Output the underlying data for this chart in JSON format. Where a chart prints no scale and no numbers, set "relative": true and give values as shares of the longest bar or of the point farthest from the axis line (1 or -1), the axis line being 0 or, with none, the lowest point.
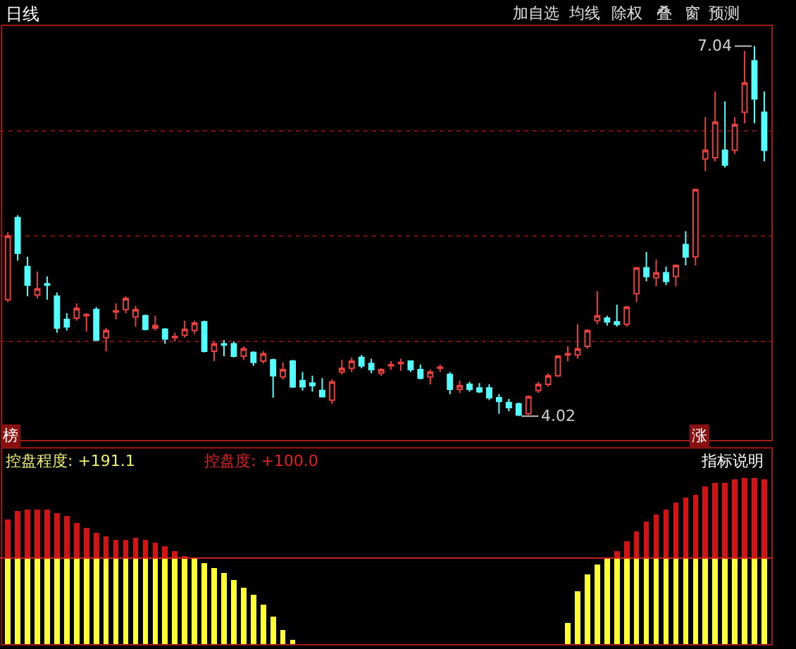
{
  "chart_data": [
    {
      "type": "candlestick",
      "title": "日线",
      "categories": [
        null,
        null,
        null,
        null,
        null,
        null,
        null,
        null,
        null,
        null,
        null,
        null,
        null,
        null,
        null,
        null,
        null,
        null,
        null,
        null,
        null,
        null,
        null,
        null,
        null,
        null,
        null,
        null,
        null,
        null,
        null,
        null,
        null,
        null,
        null,
        null,
        null,
        null,
        null,
        null,
        null,
        null,
        null,
        null,
        null,
        null,
        null,
        null,
        null,
        null,
        null,
        null,
        null,
        null,
        null,
        null,
        null,
        null,
        null,
        null,
        null,
        null,
        null,
        null,
        null,
        null,
        null,
        null,
        null,
        null,
        null,
        null,
        null,
        null,
        null,
        null,
        null,
        null
      ],
      "ohlc": [
        [
          4.97,
          5.52,
          4.95,
          5.49
        ],
        [
          5.64,
          5.66,
          5.29,
          5.35
        ],
        [
          5.24,
          5.32,
          5.0,
          5.09
        ],
        [
          5.01,
          5.2,
          4.98,
          5.06
        ],
        [
          5.1,
          5.16,
          4.97,
          5.09
        ],
        [
          5.0,
          5.03,
          4.7,
          4.74
        ],
        [
          4.81,
          4.86,
          4.72,
          4.75
        ],
        [
          4.82,
          4.94,
          4.8,
          4.9
        ],
        [
          4.84,
          4.86,
          4.71,
          4.85
        ],
        [
          4.89,
          4.91,
          4.64,
          4.64
        ],
        [
          4.66,
          4.74,
          4.55,
          4.72
        ],
        [
          4.87,
          4.94,
          4.81,
          4.88
        ],
        [
          4.89,
          5.0,
          4.86,
          4.98
        ],
        [
          4.83,
          4.92,
          4.75,
          4.89
        ],
        [
          4.84,
          4.85,
          4.72,
          4.73
        ],
        [
          4.74,
          4.84,
          4.72,
          4.76
        ],
        [
          4.73,
          4.74,
          4.61,
          4.65
        ],
        [
          4.66,
          4.7,
          4.63,
          4.67
        ],
        [
          4.68,
          4.8,
          4.66,
          4.73
        ],
        [
          4.72,
          4.8,
          4.69,
          4.78
        ],
        [
          4.79,
          4.8,
          4.54,
          4.55
        ],
        [
          4.55,
          4.63,
          4.47,
          4.61
        ],
        [
          4.61,
          4.64,
          4.51,
          4.6
        ],
        [
          4.61,
          4.63,
          4.5,
          4.51
        ],
        [
          4.51,
          4.59,
          4.48,
          4.57
        ],
        [
          4.54,
          4.55,
          4.43,
          4.46
        ],
        [
          4.47,
          4.55,
          4.45,
          4.53
        ],
        [
          4.48,
          4.49,
          4.17,
          4.35
        ],
        [
          4.34,
          4.46,
          4.32,
          4.4
        ],
        [
          4.47,
          4.48,
          4.25,
          4.26
        ],
        [
          4.31,
          4.38,
          4.23,
          4.26
        ],
        [
          4.29,
          4.35,
          4.22,
          4.27
        ],
        [
          4.23,
          4.33,
          4.18,
          4.18
        ],
        [
          4.15,
          4.32,
          4.12,
          4.3
        ],
        [
          4.38,
          4.48,
          4.36,
          4.41
        ],
        [
          4.41,
          4.5,
          4.38,
          4.47
        ],
        [
          4.5,
          4.52,
          4.41,
          4.43
        ],
        [
          4.45,
          4.49,
          4.37,
          4.4
        ],
        [
          4.37,
          4.41,
          4.35,
          4.4
        ],
        [
          4.43,
          4.47,
          4.4,
          4.44
        ],
        [
          4.45,
          4.49,
          4.39,
          4.46
        ],
        [
          4.47,
          4.47,
          4.38,
          4.4
        ],
        [
          4.4,
          4.44,
          4.32,
          4.33
        ],
        [
          4.34,
          4.4,
          4.28,
          4.38
        ],
        [
          4.41,
          4.44,
          4.38,
          4.42
        ],
        [
          4.36,
          4.38,
          4.2,
          4.24
        ],
        [
          4.24,
          4.31,
          4.21,
          4.27
        ],
        [
          4.28,
          4.3,
          4.22,
          4.24
        ],
        [
          4.25,
          4.29,
          4.21,
          4.22
        ],
        [
          4.25,
          4.28,
          4.15,
          4.17
        ],
        [
          4.17,
          4.2,
          4.04,
          4.14
        ],
        [
          4.13,
          4.16,
          4.06,
          4.09
        ],
        [
          4.12,
          4.13,
          4.02,
          4.03
        ],
        [
          4.04,
          4.19,
          4.03,
          4.18
        ],
        [
          4.23,
          4.3,
          4.21,
          4.28
        ],
        [
          4.28,
          4.37,
          4.26,
          4.35
        ],
        [
          4.35,
          4.52,
          4.34,
          4.51
        ],
        [
          4.52,
          4.59,
          4.47,
          4.53
        ],
        [
          4.52,
          4.77,
          4.49,
          4.57
        ],
        [
          4.59,
          4.73,
          4.57,
          4.72
        ],
        [
          4.8,
          5.04,
          4.77,
          4.84
        ],
        [
          4.82,
          4.84,
          4.76,
          4.79
        ],
        [
          4.79,
          4.93,
          4.75,
          4.77
        ],
        [
          4.77,
          4.92,
          4.75,
          4.91
        ],
        [
          5.02,
          5.23,
          4.95,
          5.23
        ],
        [
          5.23,
          5.36,
          5.12,
          5.16
        ],
        [
          5.15,
          5.3,
          5.08,
          5.19
        ],
        [
          5.19,
          5.24,
          5.09,
          5.12
        ],
        [
          5.16,
          5.26,
          5.08,
          5.25
        ],
        [
          5.42,
          5.53,
          5.25,
          5.32
        ],
        [
          5.32,
          5.87,
          5.25,
          5.87
        ],
        [
          6.12,
          6.46,
          6.02,
          6.19
        ],
        [
          6.13,
          6.67,
          6.1,
          6.42
        ],
        [
          6.19,
          6.59,
          6.05,
          6.07
        ],
        [
          6.19,
          6.46,
          6.16,
          6.4
        ],
        [
          6.5,
          7.0,
          6.41,
          6.74
        ],
        [
          6.92,
          7.04,
          6.41,
          6.61
        ],
        [
          6.5,
          6.67,
          6.1,
          6.19
        ]
      ],
      "ylim": [
        3.82,
        7.21
      ],
      "yticks": [
        {
          "value": 4.63,
          "label": null
        },
        {
          "value": 5.49,
          "label": null
        },
        {
          "value": 6.35,
          "label": null
        }
      ],
      "grid": "y",
      "tick_labels": false,
      "annotations": [
        "加自选",
        "均线",
        "除权",
        "叠",
        "窗",
        "预测",
        "榜",
        "涨",
        "7.04",
        "4.02"
      ]
    },
    {
      "type": "bar",
      "stacked": true,
      "relative": true,
      "tick_labels": false,
      "categories": [
        null,
        null,
        null,
        null,
        null,
        null,
        null,
        null,
        null,
        null,
        null,
        null,
        null,
        null,
        null,
        null,
        null,
        null,
        null,
        null,
        null,
        null,
        null,
        null,
        null,
        null,
        null,
        null,
        null,
        null,
        null,
        null,
        null,
        null,
        null,
        null,
        null,
        null,
        null,
        null,
        null,
        null,
        null,
        null,
        null,
        null,
        null,
        null,
        null,
        null,
        null,
        null,
        null,
        null,
        null,
        null,
        null,
        null,
        null,
        null,
        null,
        null,
        null,
        null,
        null,
        null,
        null,
        null,
        null,
        null,
        null,
        null,
        null,
        null,
        null,
        null,
        null,
        null
      ],
      "series": [
        {
          "color": "#ffff33",
          "values": [
            0.52,
            0.52,
            0.52,
            0.52,
            0.52,
            0.52,
            0.52,
            0.52,
            0.52,
            0.52,
            0.52,
            0.52,
            0.52,
            0.52,
            0.52,
            0.52,
            0.52,
            0.52,
            0.52,
            0.52,
            0.49,
            0.46,
            0.43,
            0.39,
            0.34,
            0.3,
            0.24,
            0.17,
            0.09,
            0.03,
            0,
            0,
            0,
            0,
            0,
            0,
            0,
            0,
            0,
            0,
            0,
            0,
            0,
            0,
            0,
            0,
            0,
            0,
            0,
            0,
            0,
            0,
            0,
            0,
            0,
            0,
            0,
            0.13,
            0.32,
            0.42,
            0.48,
            0.52,
            0.52,
            0.52,
            0.52,
            0.52,
            0.52,
            0.52,
            0.52,
            0.52,
            0.52,
            0.52,
            0.52,
            0.52,
            0.52,
            0.52,
            0.52,
            0.52
          ]
        },
        {
          "color": "#d41414",
          "values": [
            0.23,
            0.28,
            0.29,
            0.29,
            0.29,
            0.27,
            0.25,
            0.21,
            0.18,
            0.15,
            0.13,
            0.11,
            0.11,
            0.12,
            0.11,
            0.09,
            0.07,
            0.04,
            0.01,
            0,
            0,
            0,
            0,
            0,
            0,
            0,
            0,
            0,
            0,
            0,
            0,
            0,
            0,
            0,
            0,
            0,
            0,
            0,
            0,
            0,
            0,
            0,
            0,
            0,
            0,
            0,
            0,
            0,
            0,
            0,
            0,
            0,
            0,
            0,
            0,
            0,
            0,
            0,
            0,
            0,
            0,
            0,
            0.04,
            0.1,
            0.16,
            0.22,
            0.26,
            0.29,
            0.33,
            0.36,
            0.38,
            0.43,
            0.45,
            0.45,
            0.47,
            0.48,
            0.48,
            0.47
          ]
        }
      ],
      "ref_lines": [
        {
          "axis": "y",
          "value": 0.52,
          "color": "#cc2222"
        }
      ],
      "annotations": [
        "控盘程度: +191.1",
        "控盘度: +100.0",
        "指标说明"
      ]
    }
  ]
}
